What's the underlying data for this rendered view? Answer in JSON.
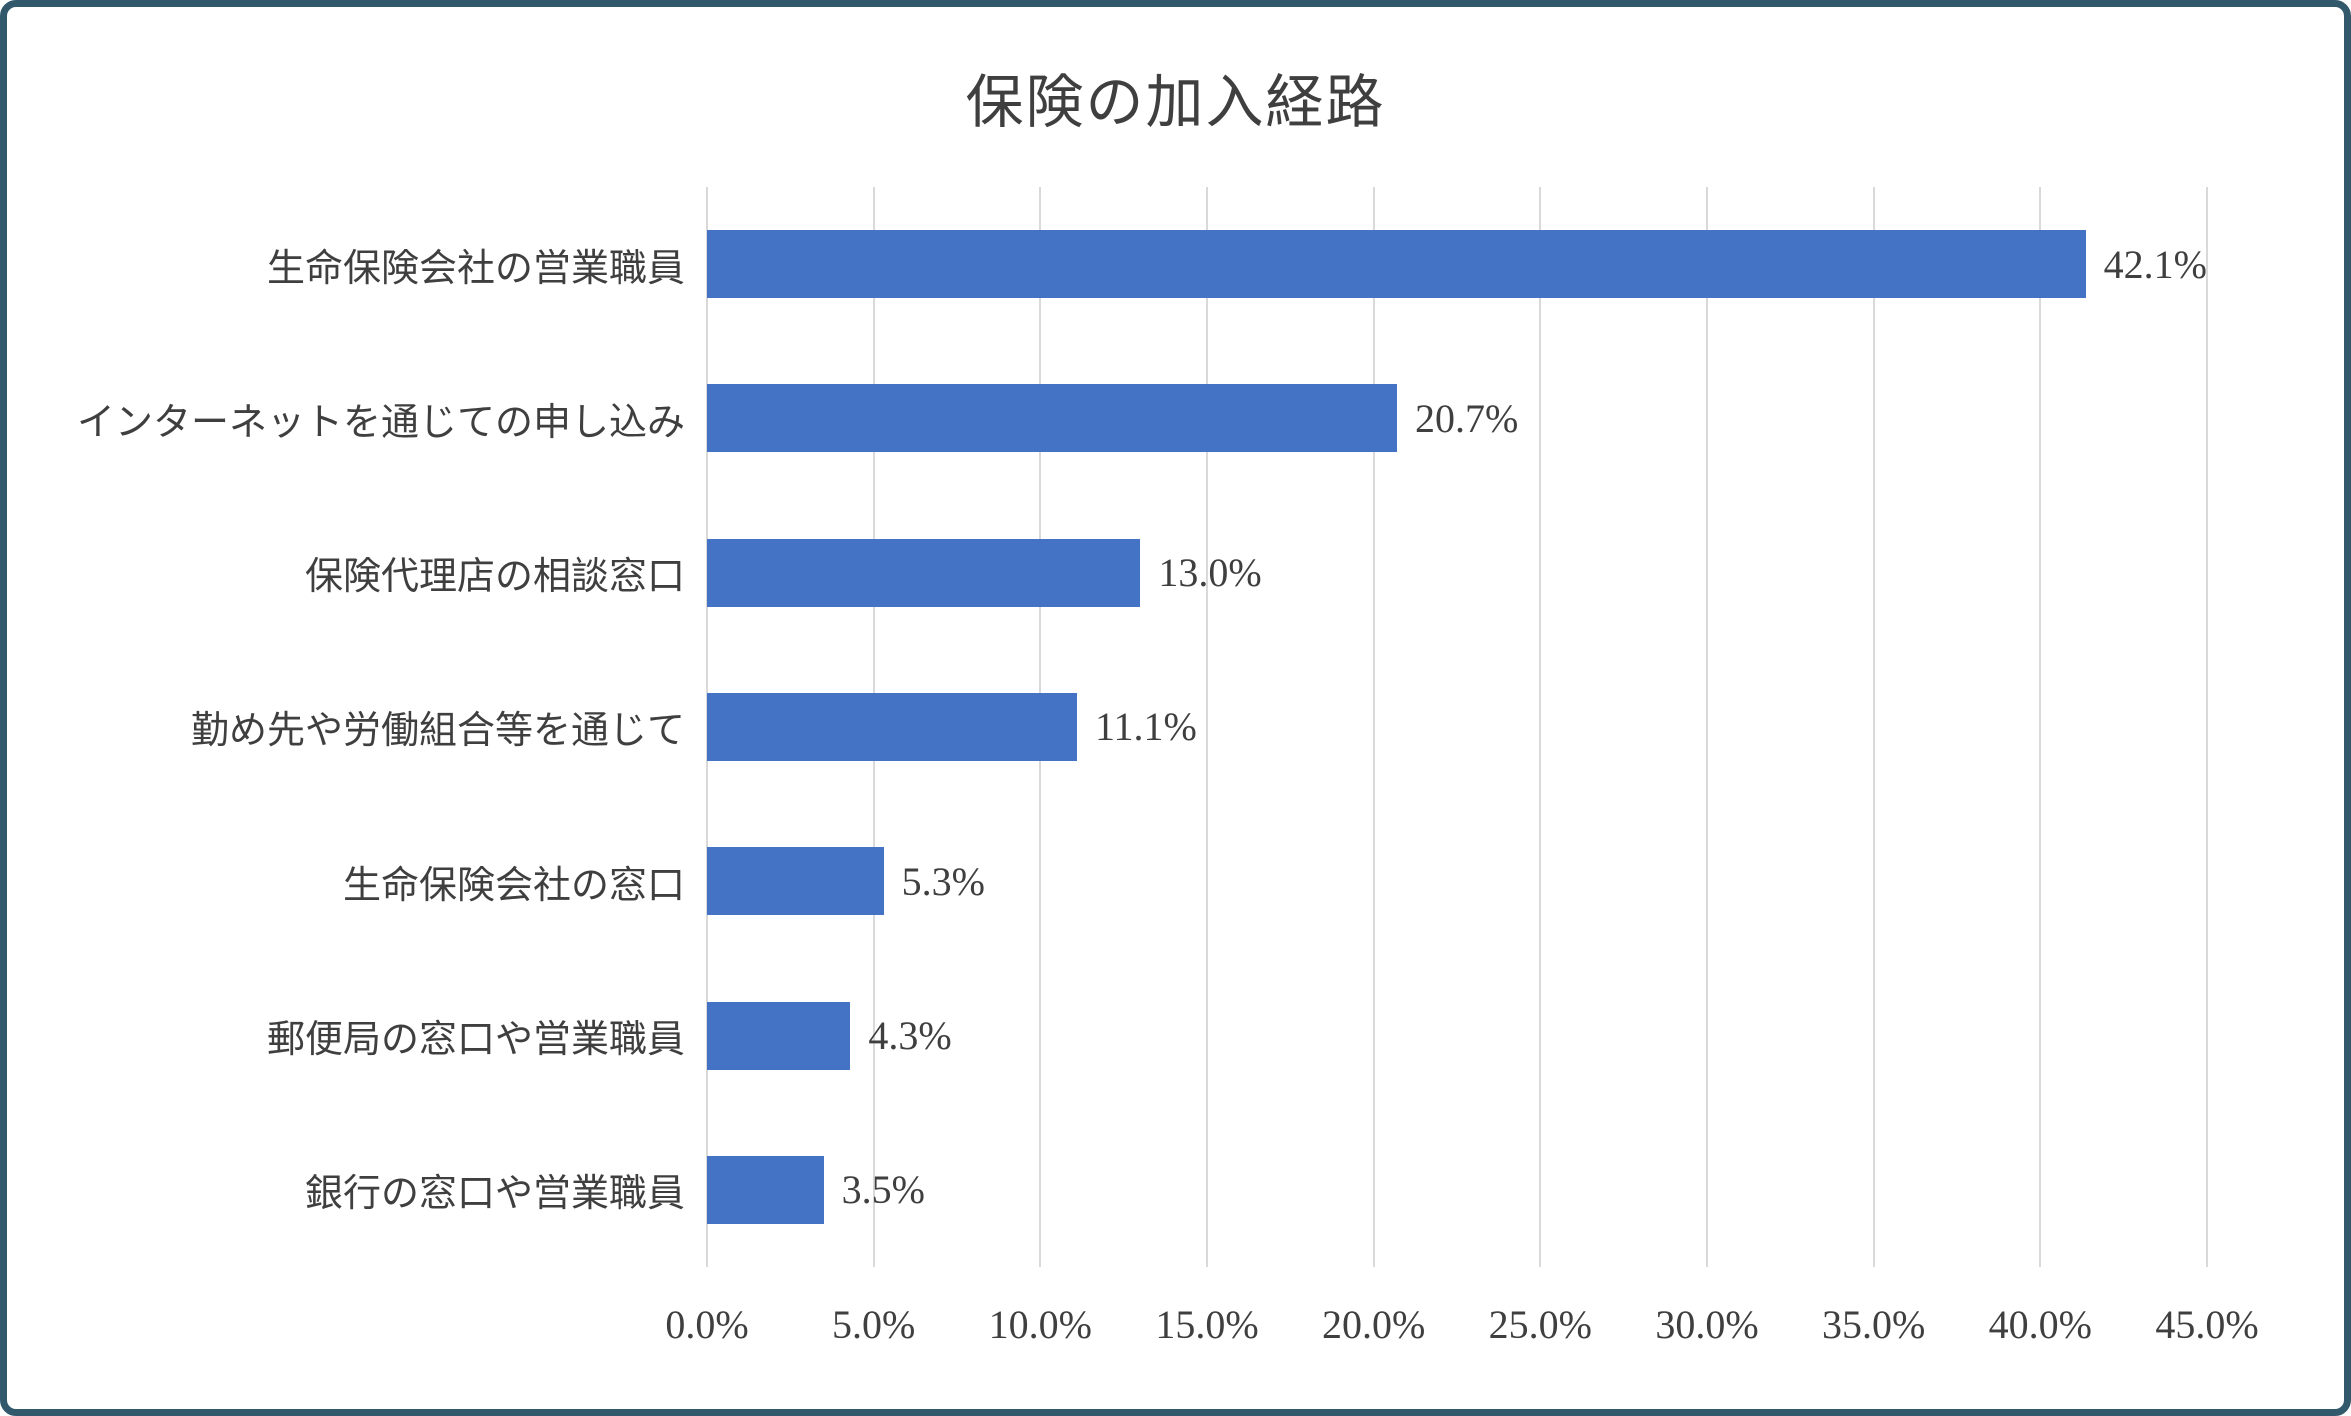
{
  "frame": {
    "border_color": "#31596B",
    "background_color": "#FFFFFF"
  },
  "chart_data": {
    "type": "bar",
    "orientation": "horizontal",
    "title": "保険の加入経路",
    "categories": [
      "生命保険会社の営業職員",
      "インターネットを通じての申し込み",
      "保険代理店の相談窓口",
      "勤め先や労働組合等を通じて",
      "生命保険会社の窓口",
      "郵便局の窓口や営業職員",
      "銀行の窓口や営業職員"
    ],
    "values": [
      42.1,
      20.7,
      13.0,
      11.1,
      5.3,
      4.3,
      3.5
    ],
    "value_labels": [
      "42.1%",
      "20.7%",
      "13.0%",
      "11.1%",
      "5.3%",
      "4.3%",
      "3.5%"
    ],
    "x_ticks": [
      "0.0%",
      "5.0%",
      "10.0%",
      "15.0%",
      "20.0%",
      "25.0%",
      "30.0%",
      "35.0%",
      "40.0%",
      "45.0%"
    ],
    "xlim": [
      0,
      45
    ],
    "xlabel": "",
    "ylabel": "",
    "grid": true,
    "legend": false,
    "bar_color": "#4472C4",
    "gridline_color": "#D9D9D9",
    "text_color": "#3F3F3F"
  }
}
